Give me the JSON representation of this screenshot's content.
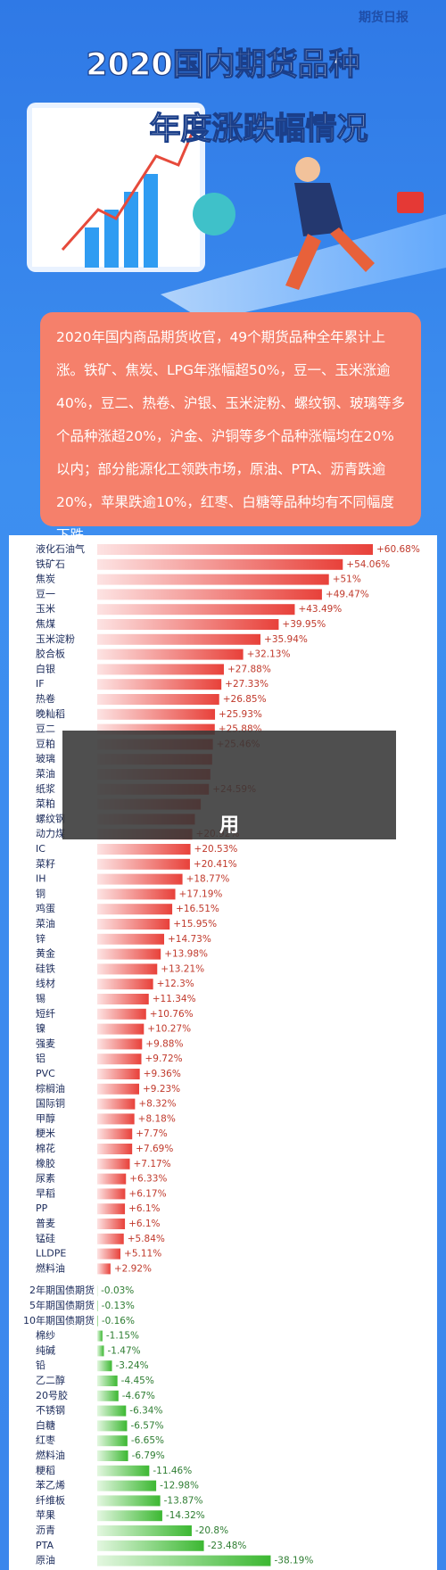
{
  "logo": "期货日报",
  "header": {
    "title_line1": "2020国内期货品种",
    "title_line2": "年度涨跌幅情况"
  },
  "summary": "2020年国内商品期货收官，49个期货品种全年累计上涨。铁矿、焦炭、LPG年涨幅超50%，豆一、玉米涨逾40%，豆二、热卷、沪银、玉米淀粉、螺纹钢、玻璃等多个品种涨超20%，沪金、沪铜等多个品种涨幅均在20%以内；部分能源化工领跌市场，原油、PTA、沥青跌逾20%，苹果跌逾10%，红枣、白糖等品种均有不同幅度下跌。",
  "overlay_text": "用",
  "chart_data": {
    "type": "bar",
    "positive_color": "#e8413a",
    "negative_color": "#3cb832",
    "categories": [
      "液化石油气",
      "铁矿石",
      "焦炭",
      "豆一",
      "玉米",
      "焦煤",
      "玉米淀粉",
      "胶合板",
      "白银",
      "IF",
      "热卷",
      "晚籼稻",
      "豆二",
      "豆粕",
      "玻璃",
      "菜油",
      "纸浆",
      "菜粕",
      "螺纹钢",
      "动力煤",
      "IC",
      "菜籽",
      "IH",
      "铜",
      "鸡蛋",
      "菜油",
      "锌",
      "黄金",
      "硅铁",
      "线材",
      "锡",
      "短纤",
      "镍",
      "强麦",
      "铝",
      "PVC",
      "棕榈油",
      "国际铜",
      "甲醇",
      "粳米",
      "棉花",
      "橡胶",
      "尿素",
      "早稻",
      "PP",
      "普麦",
      "锰硅",
      "LLDPE",
      "燃料油",
      "2年期国债期货",
      "5年期国债期货",
      "10年期国债期货",
      "棉纱",
      "纯碱",
      "铅",
      "乙二醇",
      "20号胶",
      "不锈钢",
      "白糖",
      "红枣",
      "燃料油",
      "粳稻",
      "苯乙烯",
      "纤维板",
      "苹果",
      "沥青",
      "PTA",
      "原油"
    ],
    "values": [
      60.68,
      54.06,
      51,
      49.47,
      43.49,
      39.95,
      35.94,
      32.13,
      27.88,
      27.33,
      26.85,
      25.93,
      25.88,
      25.46,
      25.3,
      24.9,
      24.59,
      22.8,
      21.5,
      20.92,
      20.53,
      20.41,
      18.77,
      17.19,
      16.51,
      15.95,
      14.73,
      13.98,
      13.21,
      12.3,
      11.34,
      10.76,
      10.27,
      9.88,
      9.72,
      9.36,
      9.23,
      8.32,
      8.18,
      7.7,
      7.69,
      7.17,
      6.33,
      6.17,
      6.1,
      6.1,
      5.84,
      5.11,
      2.92,
      -0.03,
      -0.13,
      -0.16,
      -1.15,
      -1.47,
      -3.24,
      -4.45,
      -4.67,
      -6.34,
      -6.57,
      -6.65,
      -6.79,
      -11.46,
      -12.98,
      -13.87,
      -14.32,
      -20.8,
      -23.48,
      -38.19
    ],
    "value_labels": [
      "+60.68%",
      "+54.06%",
      "+51%",
      "+49.47%",
      "+43.49%",
      "+39.95%",
      "+35.94%",
      "+32.13%",
      "+27.88%",
      "+27.33%",
      "+26.85%",
      "+25.93%",
      "+25.88%",
      "+25.46%",
      null,
      null,
      "+24.59%",
      null,
      null,
      "+20.92%",
      "+20.53%",
      "+20.41%",
      "+18.77%",
      "+17.19%",
      "+16.51%",
      "+15.95%",
      "+14.73%",
      "+13.98%",
      "+13.21%",
      "+12.3%",
      "+11.34%",
      "+10.76%",
      "+10.27%",
      "+9.88%",
      "+9.72%",
      "+9.36%",
      "+9.23%",
      "+8.32%",
      "+8.18%",
      "+7.7%",
      "+7.69%",
      "+7.17%",
      "+6.33%",
      "+6.17%",
      "+6.1%",
      "+6.1%",
      "+5.84%",
      "+5.11%",
      "+2.92%",
      "-0.03%",
      "-0.13%",
      "-0.16%",
      "-1.15%",
      "-1.47%",
      "-3.24%",
      "-4.45%",
      "-4.67%",
      "-6.34%",
      "-6.57%",
      "-6.65%",
      "-6.79%",
      "-11.46%",
      "-12.98%",
      "-13.87%",
      "-14.32%",
      "-20.8%",
      "-23.48%",
      "-38.19%"
    ]
  }
}
